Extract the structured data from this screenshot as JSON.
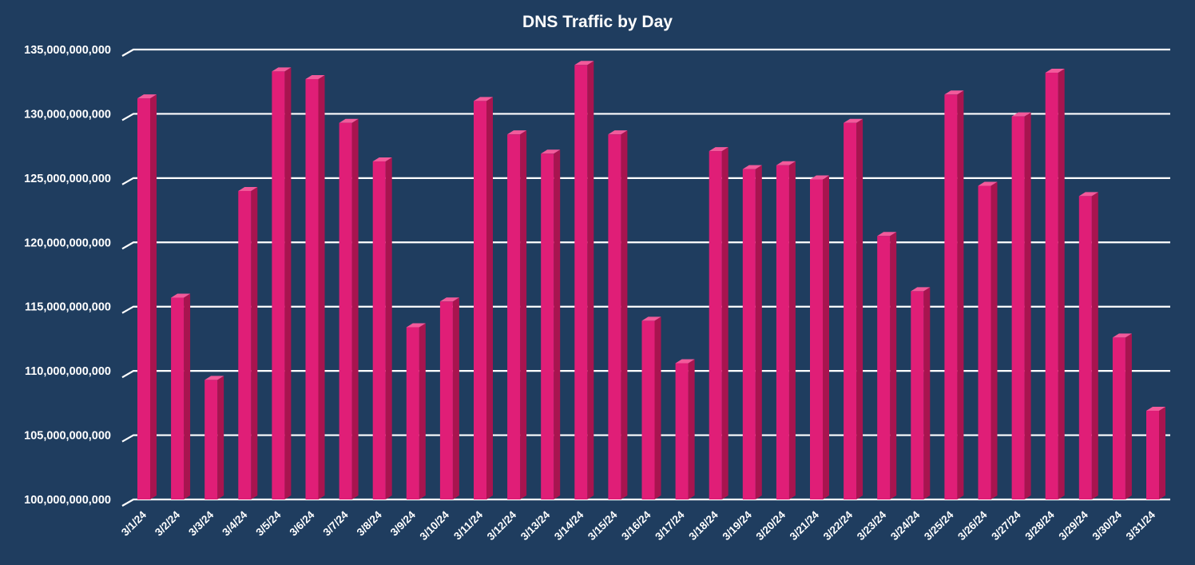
{
  "chart_data": {
    "type": "bar",
    "title": "DNS Traffic by Day",
    "xlabel": "",
    "ylabel": "",
    "grid": true,
    "ylim": [
      100000000000,
      135000000000
    ],
    "y_ticks": [
      100000000000,
      105000000000,
      110000000000,
      115000000000,
      120000000000,
      125000000000,
      130000000000,
      135000000000
    ],
    "y_tick_labels": [
      "100,000,000,000",
      "105,000,000,000",
      "110,000,000,000",
      "115,000,000,000",
      "120,000,000,000",
      "125,000,000,000",
      "130,000,000,000",
      "135,000,000,000"
    ],
    "categories": [
      "3/1/24",
      "3/2/24",
      "3/3/24",
      "3/4/24",
      "3/5/24",
      "3/6/24",
      "3/7/24",
      "3/8/24",
      "3/9/24",
      "3/10/24",
      "3/11/24",
      "3/12/24",
      "3/13/24",
      "3/14/24",
      "3/15/24",
      "3/16/24",
      "3/17/24",
      "3/18/24",
      "3/19/24",
      "3/20/24",
      "3/21/24",
      "3/22/24",
      "3/23/24",
      "3/24/24",
      "3/25/24",
      "3/26/24",
      "3/27/24",
      "3/28/24",
      "3/29/24",
      "3/30/24",
      "3/31/24"
    ],
    "values": [
      131200000000,
      115700000000,
      109300000000,
      124000000000,
      133300000000,
      132700000000,
      129300000000,
      126300000000,
      113400000000,
      115400000000,
      131000000000,
      128400000000,
      126900000000,
      133800000000,
      128400000000,
      113900000000,
      110600000000,
      127100000000,
      125700000000,
      126000000000,
      124900000000,
      129300000000,
      120500000000,
      116200000000,
      131500000000,
      124400000000,
      129800000000,
      133200000000,
      123600000000,
      112600000000,
      106900000000
    ],
    "colors": {
      "background": "#1f3d5f",
      "bar_front": "#e01e77",
      "bar_side": "#a8144f",
      "bar_top": "#f25a9b",
      "gridline": "#ffffff",
      "text": "#ffffff"
    }
  }
}
